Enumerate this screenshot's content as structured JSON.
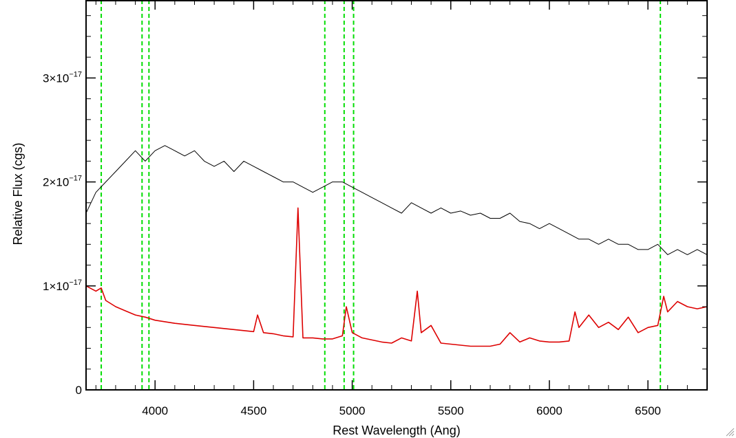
{
  "chart_data": {
    "type": "line",
    "title": "",
    "xlabel": "Rest Wavelength (Ang)",
    "ylabel": "Relative Flux (cgs)",
    "xlim": [
      3650,
      6800
    ],
    "ylim": [
      0,
      3.75e-17
    ],
    "x_ticks": [
      {
        "value": 4000,
        "label": "4000"
      },
      {
        "value": 4500,
        "label": "4500"
      },
      {
        "value": 5000,
        "label": "5000"
      },
      {
        "value": 5500,
        "label": "5500"
      },
      {
        "value": 6000,
        "label": "6000"
      },
      {
        "value": 6500,
        "label": "6500"
      }
    ],
    "y_ticks": [
      {
        "value": 0,
        "mantissa": "0",
        "exponent": ""
      },
      {
        "value": 1e-17,
        "mantissa": "1×10",
        "exponent": "−17"
      },
      {
        "value": 2e-17,
        "mantissa": "2×10",
        "exponent": "−17"
      },
      {
        "value": 3e-17,
        "mantissa": "3×10",
        "exponent": "−17"
      }
    ],
    "grid": false,
    "legend": "none",
    "series": [
      {
        "color": "#000000",
        "style": "solid",
        "x": [
          3650,
          3700,
          3750,
          3800,
          3850,
          3900,
          3950,
          4000,
          4050,
          4100,
          4150,
          4200,
          4250,
          4300,
          4350,
          4400,
          4450,
          4500,
          4550,
          4600,
          4650,
          4700,
          4750,
          4800,
          4850,
          4900,
          4950,
          5000,
          5050,
          5100,
          5150,
          5200,
          5250,
          5300,
          5350,
          5400,
          5450,
          5500,
          5550,
          5600,
          5650,
          5700,
          5750,
          5800,
          5850,
          5900,
          5950,
          6000,
          6050,
          6100,
          6150,
          6200,
          6250,
          6300,
          6350,
          6400,
          6450,
          6500,
          6550,
          6600,
          6650,
          6700,
          6750,
          6800
        ],
        "y": [
          1.7e-17,
          1.9e-17,
          2e-17,
          2.1e-17,
          2.2e-17,
          2.3e-17,
          2.2e-17,
          2.3e-17,
          2.35e-17,
          2.3e-17,
          2.25e-17,
          2.3e-17,
          2.2e-17,
          2.15e-17,
          2.2e-17,
          2.1e-17,
          2.2e-17,
          2.15e-17,
          2.1e-17,
          2.05e-17,
          2e-17,
          2e-17,
          1.95e-17,
          1.9e-17,
          1.95e-17,
          2e-17,
          2e-17,
          1.95e-17,
          1.9e-17,
          1.85e-17,
          1.8e-17,
          1.75e-17,
          1.7e-17,
          1.8e-17,
          1.75e-17,
          1.7e-17,
          1.75e-17,
          1.7e-17,
          1.72e-17,
          1.68e-17,
          1.7e-17,
          1.65e-17,
          1.65e-17,
          1.7e-17,
          1.62e-17,
          1.6e-17,
          1.55e-17,
          1.6e-17,
          1.55e-17,
          1.5e-17,
          1.45e-17,
          1.45e-17,
          1.4e-17,
          1.45e-17,
          1.4e-17,
          1.4e-17,
          1.35e-17,
          1.35e-17,
          1.4e-17,
          1.3e-17,
          1.35e-17,
          1.3e-17,
          1.35e-17,
          1.3e-17
        ]
      },
      {
        "color": "#dd0000",
        "style": "solid",
        "x": [
          3650,
          3700,
          3727,
          3750,
          3800,
          3850,
          3900,
          3950,
          4000,
          4100,
          4200,
          4300,
          4400,
          4500,
          4520,
          4550,
          4600,
          4650,
          4700,
          4725,
          4750,
          4800,
          4850,
          4900,
          4950,
          4970,
          5000,
          5050,
          5100,
          5150,
          5200,
          5250,
          5300,
          5330,
          5350,
          5400,
          5450,
          5500,
          5550,
          5600,
          5650,
          5700,
          5750,
          5800,
          5850,
          5900,
          5950,
          6000,
          6050,
          6100,
          6130,
          6150,
          6200,
          6250,
          6300,
          6350,
          6400,
          6450,
          6500,
          6550,
          6580,
          6600,
          6650,
          6700,
          6750,
          6800
        ],
        "y": [
          1e-17,
          9.5e-18,
          9.8e-18,
          8.6e-18,
          8e-18,
          7.6e-18,
          7.2e-18,
          7e-18,
          6.7e-18,
          6.4e-18,
          6.2e-18,
          6e-18,
          5.8e-18,
          5.6e-18,
          7.2e-18,
          5.5e-18,
          5.4e-18,
          5.2e-18,
          5.1e-18,
          1.75e-17,
          5e-18,
          5e-18,
          4.9e-18,
          4.9e-18,
          5.2e-18,
          8e-18,
          5.5e-18,
          5e-18,
          4.8e-18,
          4.6e-18,
          4.5e-18,
          5e-18,
          4.7e-18,
          9.5e-18,
          5.5e-18,
          6.2e-18,
          4.5e-18,
          4.4e-18,
          4.3e-18,
          4.2e-18,
          4.2e-18,
          4.2e-18,
          4.4e-18,
          5.5e-18,
          4.6e-18,
          5e-18,
          4.7e-18,
          4.6e-18,
          4.6e-18,
          4.7e-18,
          7.5e-18,
          6e-18,
          7.2e-18,
          6e-18,
          6.5e-18,
          5.8e-18,
          7e-18,
          5.5e-18,
          6e-18,
          6.2e-18,
          9e-18,
          7.5e-18,
          8.5e-18,
          8e-18,
          7.8e-18,
          8e-18
        ]
      }
    ],
    "vertical_lines": [
      {
        "x": 3727,
        "color": "#00dd00",
        "style": "dashed"
      },
      {
        "x": 3934,
        "color": "#00dd00",
        "style": "dashed"
      },
      {
        "x": 3969,
        "color": "#00dd00",
        "style": "dashed"
      },
      {
        "x": 4861,
        "color": "#00dd00",
        "style": "dashed"
      },
      {
        "x": 4959,
        "color": "#00dd00",
        "style": "dashed"
      },
      {
        "x": 5007,
        "color": "#00dd00",
        "style": "dashed"
      },
      {
        "x": 6563,
        "color": "#00dd00",
        "style": "dashed"
      }
    ]
  }
}
